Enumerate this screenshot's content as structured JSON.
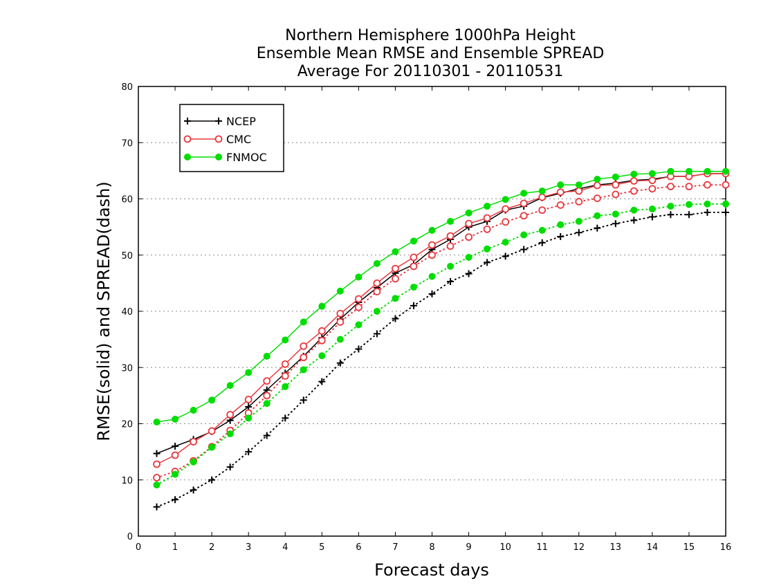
{
  "chart_data": {
    "type": "line",
    "title": [
      "Northern Hemisphere 1000hPa Height",
      "Ensemble Mean RMSE and Ensemble SPREAD",
      "Average For 20110301 - 20110531"
    ],
    "xlabel": "Forecast days",
    "ylabel": "RMSE(solid) and SPREAD(dash)",
    "xlim": [
      0,
      16
    ],
    "ylim": [
      0,
      80
    ],
    "xticks": [
      "0",
      "1",
      "2",
      "3",
      "4",
      "5",
      "6",
      "7",
      "8",
      "9",
      "10",
      "11",
      "12",
      "13",
      "14",
      "15",
      "16"
    ],
    "yticks": [
      "0",
      "10",
      "20",
      "30",
      "40",
      "50",
      "60",
      "70",
      "80"
    ],
    "grid": "horizontal dotted",
    "legend_position": "top-left",
    "x": [
      0.5,
      1,
      1.5,
      2,
      2.5,
      3,
      3.5,
      4,
      4.5,
      5,
      5.5,
      6,
      6.5,
      7,
      7.5,
      8,
      8.5,
      9,
      9.5,
      10,
      10.5,
      11,
      11.5,
      12,
      12.5,
      13,
      13.5,
      14,
      14.5,
      15,
      15.5,
      16
    ],
    "series": [
      {
        "name": "NCEP",
        "color": "#000000",
        "marker": "plus",
        "style": "solid",
        "values": [
          14.7,
          16.0,
          17.2,
          18.6,
          20.6,
          23.0,
          26.0,
          29.0,
          32.0,
          35.3,
          38.6,
          41.6,
          44.2,
          46.8,
          48.3,
          51.0,
          52.8,
          55.0,
          56.0,
          58.0,
          58.7,
          60.2,
          61.0,
          61.8,
          62.5,
          62.8,
          63.3,
          63.5,
          64.0,
          64.0,
          64.5,
          64.5
        ]
      },
      {
        "name": "CMC",
        "color": "#e8383d",
        "marker": "circle-open",
        "style": "solid",
        "values": [
          12.8,
          14.4,
          16.8,
          18.7,
          21.6,
          24.3,
          27.6,
          30.6,
          33.8,
          36.5,
          39.6,
          42.2,
          45.0,
          47.6,
          49.6,
          51.8,
          53.4,
          55.6,
          56.6,
          58.2,
          59.2,
          60.3,
          61.2,
          61.4,
          62.4,
          62.5,
          63.2,
          63.3,
          64.0,
          64.0,
          64.5,
          64.5
        ]
      },
      {
        "name": "FNMOC",
        "color": "#00dd00",
        "marker": "circle-filled",
        "style": "solid",
        "values": [
          20.3,
          20.8,
          22.4,
          24.2,
          26.8,
          29.1,
          32.0,
          34.9,
          38.1,
          40.9,
          43.6,
          46.1,
          48.5,
          50.6,
          52.5,
          54.4,
          56.0,
          57.5,
          58.7,
          59.9,
          61.0,
          61.4,
          62.5,
          62.5,
          63.5,
          63.9,
          64.4,
          64.5,
          64.9,
          64.9,
          64.9,
          64.9
        ]
      },
      {
        "name": "NCEP spread",
        "color": "#000000",
        "marker": "plus",
        "style": "dotted",
        "values": [
          5.2,
          6.5,
          8.2,
          10.0,
          12.3,
          15.0,
          17.9,
          21.0,
          24.2,
          27.5,
          30.8,
          33.3,
          36.0,
          38.7,
          41.0,
          43.1,
          45.3,
          46.7,
          48.7,
          49.8,
          51.0,
          52.2,
          53.3,
          54.0,
          54.8,
          55.6,
          56.2,
          56.8,
          57.2,
          57.2,
          57.6,
          57.6
        ]
      },
      {
        "name": "CMC spread",
        "color": "#e8383d",
        "marker": "circle-open",
        "style": "dotted",
        "values": [
          10.4,
          11.5,
          13.4,
          15.9,
          18.8,
          21.9,
          25.0,
          28.5,
          31.8,
          34.8,
          38.1,
          40.7,
          43.5,
          45.8,
          48.0,
          50.0,
          51.6,
          53.2,
          54.6,
          55.9,
          57.0,
          58.0,
          58.9,
          59.5,
          60.1,
          60.8,
          61.4,
          61.8,
          62.2,
          62.2,
          62.5,
          62.5
        ]
      },
      {
        "name": "FNMOC spread",
        "color": "#00dd00",
        "marker": "circle-filled",
        "style": "dotted",
        "values": [
          9.1,
          11.0,
          13.2,
          15.8,
          18.2,
          21.0,
          23.6,
          26.6,
          29.6,
          32.1,
          35.0,
          37.6,
          40.0,
          42.3,
          44.3,
          46.2,
          48.0,
          49.6,
          51.1,
          52.3,
          53.6,
          54.4,
          55.4,
          56.0,
          57.0,
          57.3,
          58.0,
          58.2,
          58.7,
          59.0,
          59.1,
          59.1
        ]
      }
    ],
    "legend": [
      "NCEP",
      "CMC",
      "FNMOC"
    ]
  }
}
